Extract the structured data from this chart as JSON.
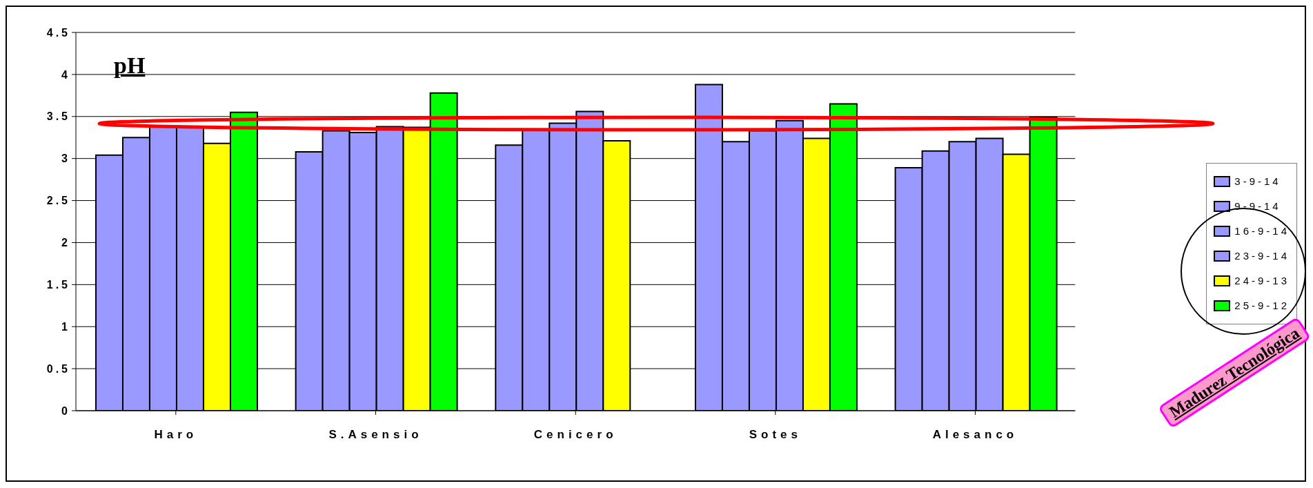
{
  "chart_data": {
    "type": "bar",
    "title": "pH",
    "categories": [
      "Haro",
      "S.Asensio",
      "Cenicero",
      "Sotes",
      "Alesanco"
    ],
    "series": [
      {
        "name": "3-9-14",
        "color": "#9999ff",
        "values": [
          3.04,
          3.08,
          3.16,
          3.88,
          2.89
        ]
      },
      {
        "name": "9-9-14",
        "color": "#9999ff",
        "values": [
          3.25,
          3.33,
          3.35,
          3.2,
          3.09
        ]
      },
      {
        "name": "16-9-14",
        "color": "#9999ff",
        "values": [
          3.39,
          3.31,
          3.42,
          3.33,
          3.2
        ]
      },
      {
        "name": "23-9-14",
        "color": "#9999ff",
        "values": [
          3.38,
          3.38,
          3.56,
          3.45,
          3.24
        ]
      },
      {
        "name": "24-9-13",
        "color": "#ffff00",
        "values": [
          3.18,
          3.37,
          3.21,
          3.24,
          3.05
        ]
      },
      {
        "name": "25-9-12",
        "color": "#00ff00",
        "values": [
          3.55,
          3.78,
          null,
          3.65,
          3.49
        ]
      }
    ],
    "ylim": [
      0,
      4.5
    ],
    "yticks": [
      0,
      0.5,
      1,
      1.5,
      2,
      2.5,
      3,
      3.5,
      4,
      4.5
    ],
    "grid": "y",
    "legend": "right",
    "annotations": [
      "Madurez Tecnológica"
    ]
  }
}
